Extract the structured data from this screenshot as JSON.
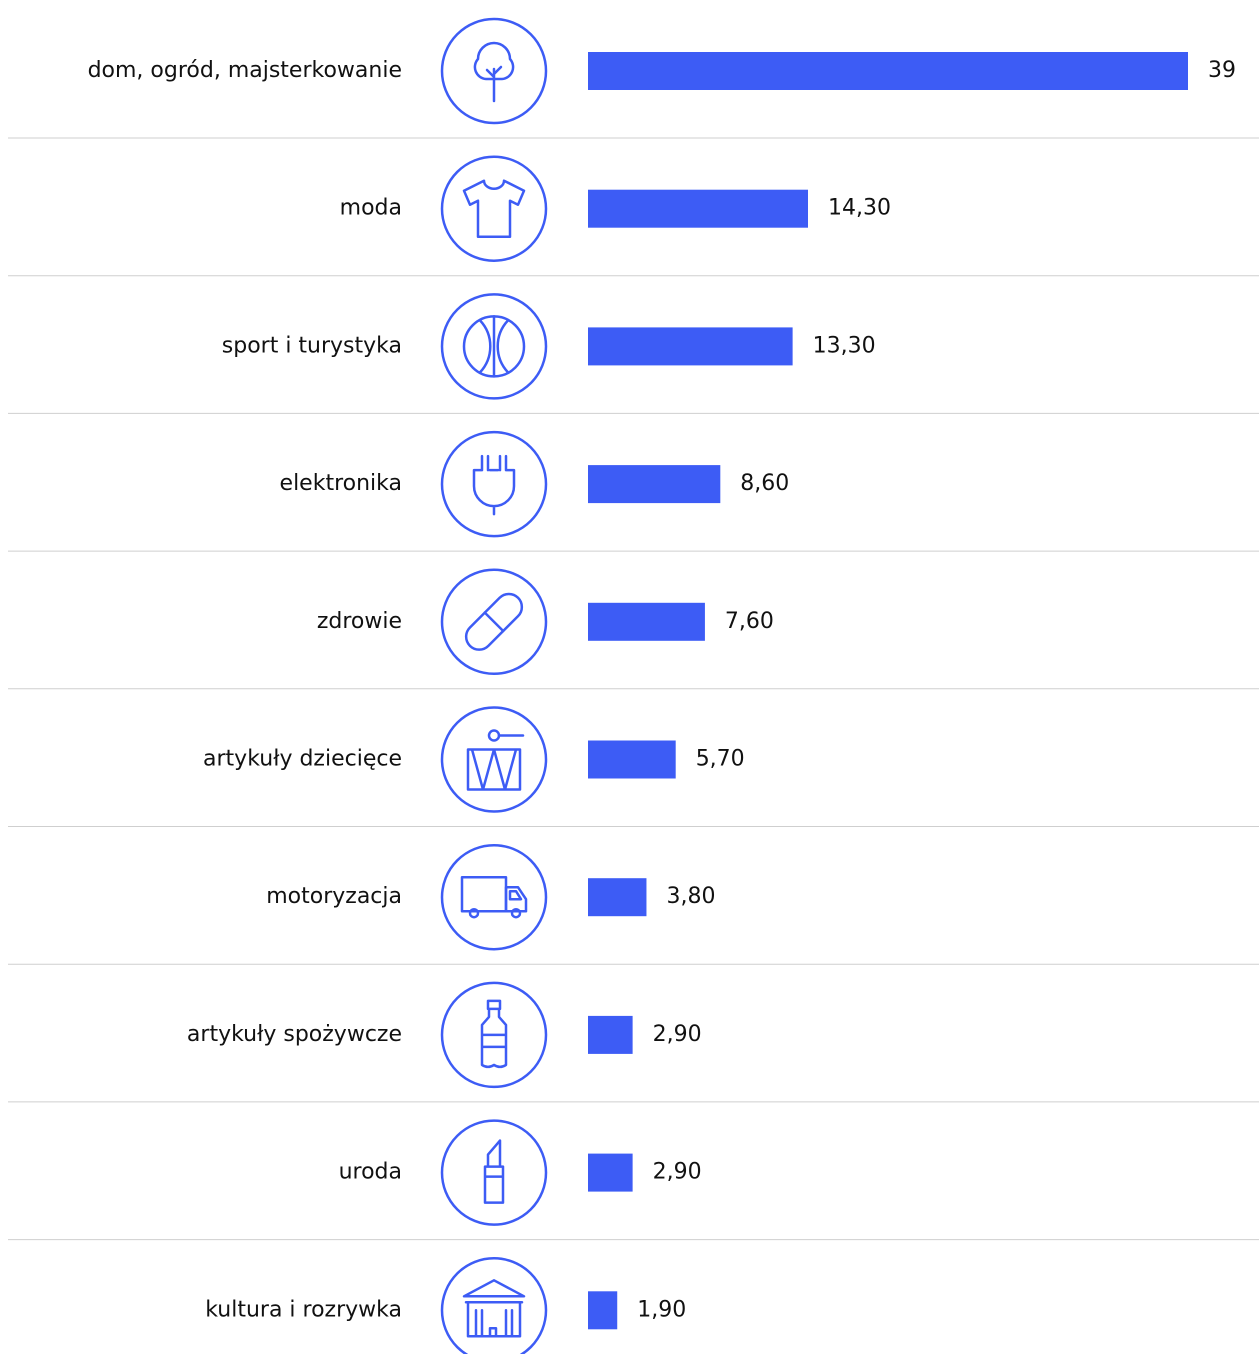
{
  "chart_data": {
    "type": "bar",
    "orientation": "horizontal",
    "color": "#3d5cf5",
    "categories": [
      "dom, ogród, majsterkowanie",
      "moda",
      "sport i turystyka",
      "elektronika",
      "zdrowie",
      "artykuły dziecięce",
      "motoryzacja",
      "artykuły spożywcze",
      "uroda",
      "kultura i rozrywka"
    ],
    "values": [
      39,
      14.3,
      13.3,
      8.6,
      7.6,
      5.7,
      3.8,
      2.9,
      2.9,
      1.9
    ],
    "value_labels": [
      "39",
      "14,30",
      "13,30",
      "8,60",
      "7,60",
      "5,70",
      "3,80",
      "2,90",
      "2,90",
      "1,90"
    ]
  }
}
